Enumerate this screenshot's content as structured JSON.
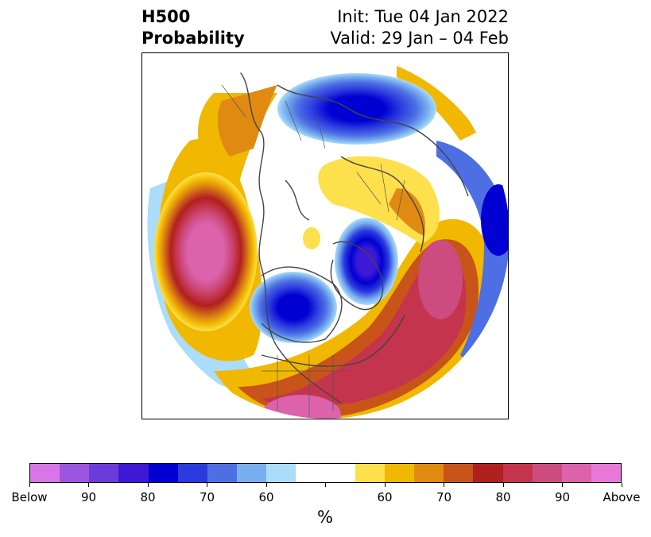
{
  "title": {
    "left_line1": "H500",
    "left_line2": "Probability",
    "right_line1": "Init: Tue 04 Jan 2022",
    "right_line2": "Valid: 29 Jan – 04 Feb"
  },
  "colorbar": {
    "unit": "%",
    "colors": [
      "#d875e8",
      "#9c55e0",
      "#6b3bdb",
      "#3d19d6",
      "#0000d2",
      "#2b3ade",
      "#4e6fe4",
      "#78b0ef",
      "#abdcf9",
      "#ffffff",
      "#ffffff",
      "#fde04c",
      "#f0b800",
      "#e08a12",
      "#c8541a",
      "#b0201e",
      "#c4344c",
      "#cc4c80",
      "#dc62ac",
      "#e978d8"
    ],
    "tick_labels": [
      "Below",
      "90",
      "80",
      "70",
      "60",
      "",
      "60",
      "70",
      "80",
      "90",
      "Above"
    ]
  },
  "map": {
    "projection": "north-polar-stereographic",
    "features": [
      "coastlines",
      "country-borders",
      "state-borders"
    ],
    "below_color": "#2b3ade",
    "above_color": "#c4344c"
  }
}
